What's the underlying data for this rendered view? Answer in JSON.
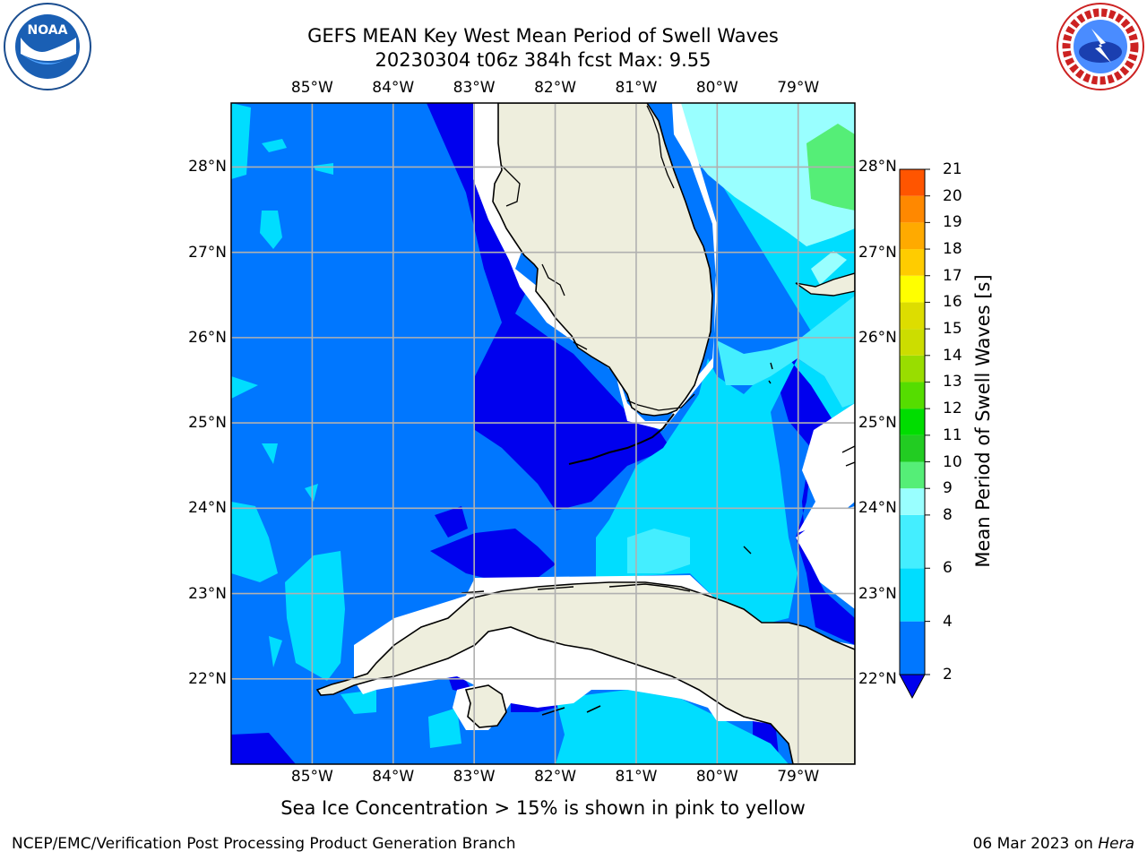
{
  "title_line1": "GEFS MEAN Key West Mean Period of Swell Waves",
  "title_line2": "20230304 t06z 384h fcst   Max: 9.55",
  "map": {
    "lon_labels": [
      "85°W",
      "84°W",
      "83°W",
      "82°W",
      "81°W",
      "80°W",
      "79°W"
    ],
    "lat_labels": [
      "28°N",
      "27°N",
      "26°N",
      "25°N",
      "24°N",
      "23°N",
      "22°N"
    ],
    "lon_values": [
      -85,
      -84,
      -83,
      -82,
      -81,
      -80,
      -79
    ],
    "lat_values": [
      28,
      27,
      26,
      25,
      24,
      23,
      22
    ],
    "lon_range": [
      -86.0,
      -78.3
    ],
    "lat_range": [
      21.0,
      28.75
    ],
    "land_color": "#eeeedd",
    "grid_color": "#b0b0b0"
  },
  "colorbar": {
    "title": "Mean Period of Swell Waves [s]",
    "ticks": [
      "2",
      "4",
      "6",
      "8",
      "9",
      "10",
      "11",
      "12",
      "13",
      "14",
      "15",
      "16",
      "17",
      "18",
      "19",
      "20",
      "21"
    ],
    "tick_values": [
      2,
      4,
      6,
      8,
      9,
      10,
      11,
      12,
      13,
      14,
      15,
      16,
      17,
      18,
      19,
      20,
      21
    ],
    "colors": [
      "#0077ff",
      "#00ddff",
      "#44eeff",
      "#99ffff",
      "#55ee77",
      "#22cc22",
      "#00dd00",
      "#55dd00",
      "#99dd00",
      "#ccdd00",
      "#dddd00",
      "#ffff00",
      "#ffcc00",
      "#ffaa00",
      "#ff8800",
      "#ff5500",
      "#ff2200",
      "#ff0000"
    ],
    "under_color": "#0000ee"
  },
  "note": "Sea Ice Concentration > 15% is shown in pink to yellow",
  "footer_left": "NCEP/EMC/Verification Post Processing Product Generation Branch",
  "footer_right_date": "06 Mar 2023 on ",
  "footer_right_host": "Hera",
  "logos": {
    "left_icon": "noaa-logo",
    "left_text": "NOAA",
    "right_icon": "nws-logo"
  }
}
